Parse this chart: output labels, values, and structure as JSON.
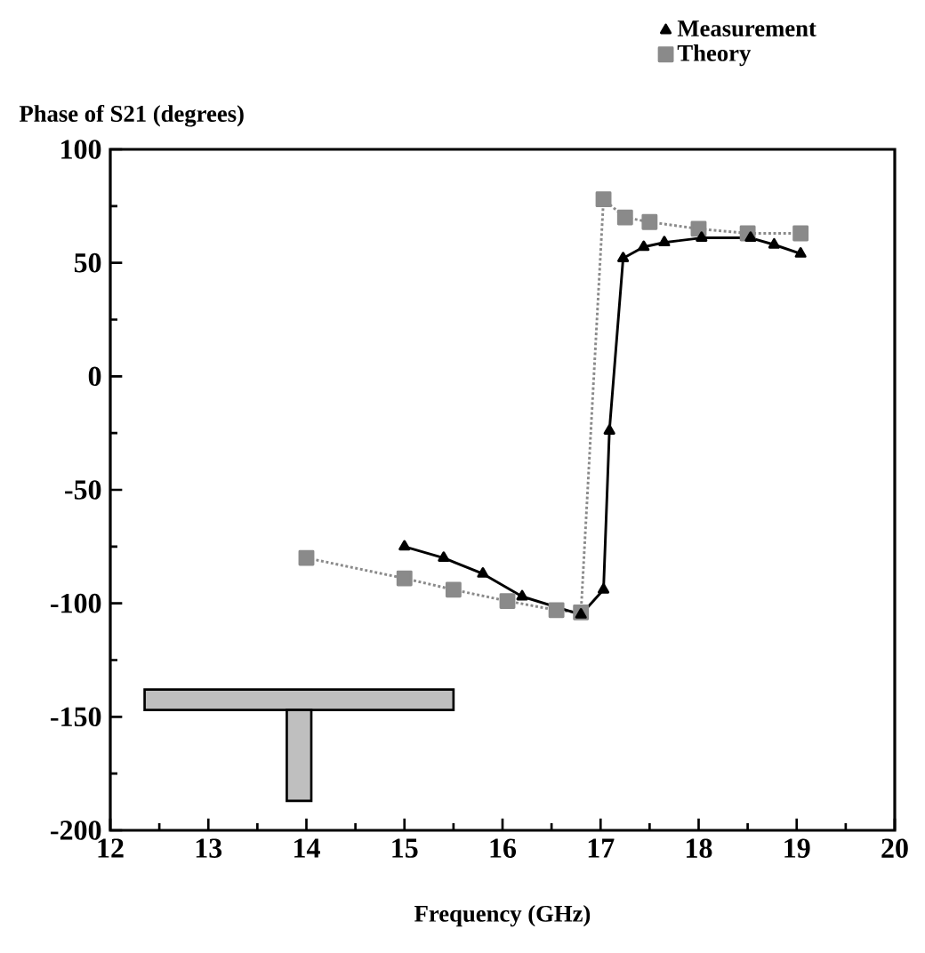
{
  "chart_data": {
    "type": "line",
    "ylabel": "Phase of S21 (degrees)",
    "xlabel": "Frequency (GHz)",
    "xlim": [
      12,
      20
    ],
    "xticks": [
      12,
      13,
      14,
      15,
      16,
      17,
      18,
      19,
      20
    ],
    "ylim": [
      -200,
      100
    ],
    "yticks": [
      -200,
      -150,
      -100,
      -50,
      0,
      50,
      100
    ],
    "grid": false,
    "legend": "top right",
    "series": [
      {
        "name": "Measurement",
        "color": "#000000",
        "marker": "triangle",
        "line_style": "solid",
        "x": [
          15,
          15.4,
          15.8,
          16.2,
          16.8,
          17.03,
          17.09,
          17.23,
          17.44,
          17.65,
          18.03,
          18.53,
          18.77,
          19.04
        ],
        "values": [
          -75,
          -80,
          -87,
          -97,
          -105,
          -94,
          -24,
          52,
          57,
          59,
          61,
          61,
          58,
          54
        ]
      },
      {
        "name": "Theory",
        "color": "#8a8a8a",
        "marker": "square",
        "line_style": "dotted",
        "x": [
          14,
          15,
          15.5,
          16.05,
          16.55,
          16.8,
          17.03,
          17.25,
          17.5,
          18,
          18.5,
          19.04
        ],
        "values": [
          -80,
          -89,
          -94,
          -99,
          -103,
          -104,
          78,
          70,
          68,
          65,
          63,
          63
        ]
      }
    ]
  }
}
